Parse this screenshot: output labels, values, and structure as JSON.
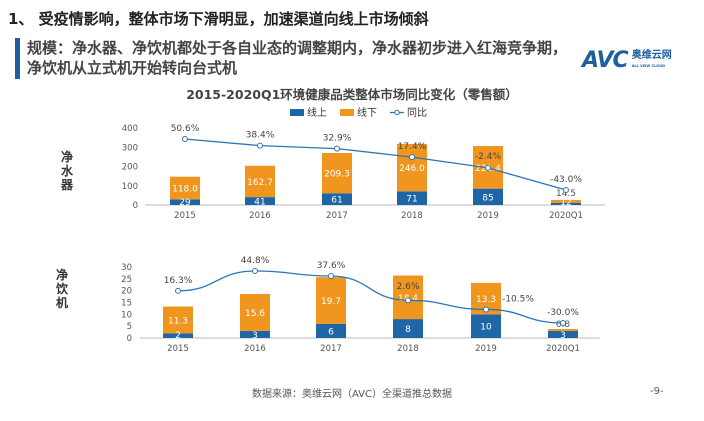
{
  "heading": "1、 受疫情影响，整体市场下滑明显，加速渠道向线上市场倾斜",
  "subheading": "规模：净水器、净饮机都处于各自业态的调整期内，净水器初步进入红海竞争期，净饮机从立式机开始转向台式机",
  "logo": {
    "mark": "AVC",
    "name": "奥维云网",
    "tagline": "ALL VIEW CLOUD"
  },
  "footer": "数据来源：奥维云网（AVC）全渠道推总数据",
  "page_number": "-9-",
  "colors": {
    "online": "#1f66a6",
    "offline": "#f0961e",
    "yoy": "#2e75b6"
  },
  "chart_data": [
    {
      "type": "bar",
      "stacked": true,
      "title": "2015-2020Q1环境健康品类整体市场同比变化（零售额）",
      "row_label": "净水器",
      "legend": [
        "线上",
        "线下",
        "同比"
      ],
      "legend_position": "top",
      "categories": [
        "2015",
        "2016",
        "2017",
        "2018",
        "2019",
        "2020Q1"
      ],
      "yticks": [
        "0",
        "100",
        "200",
        "300",
        "400"
      ],
      "ylim": [
        0,
        400
      ],
      "series": [
        {
          "name": "线上",
          "values": [
            29,
            41,
            61,
            71,
            85,
            12
          ]
        },
        {
          "name": "线下",
          "values": [
            118.0,
            162.7,
            209.3,
            246.0,
            221.4,
            14.5
          ]
        }
      ],
      "labels_online": [
        "29",
        "41",
        "61",
        "71",
        "85",
        "12"
      ],
      "labels_offline": [
        "118.0",
        "162.7",
        "209.3",
        "246.0",
        "221.4",
        "14.5"
      ],
      "yoy": {
        "name": "同比",
        "values": [
          50.6,
          38.4,
          32.9,
          17.4,
          -2.4,
          -43.0
        ],
        "labels": [
          "50.6%",
          "38.4%",
          "32.9%",
          "17.4%",
          "-2.4%",
          "-43.0%"
        ]
      }
    },
    {
      "type": "bar",
      "stacked": true,
      "row_label": "净饮机",
      "categories": [
        "2015",
        "2016",
        "2017",
        "2018",
        "2019",
        "2020Q1"
      ],
      "yticks": [
        "0",
        "5",
        "10",
        "15",
        "20",
        "25",
        "30"
      ],
      "ylim": [
        0,
        30
      ],
      "series": [
        {
          "name": "线上",
          "values": [
            2,
            3,
            6,
            8,
            10,
            3
          ]
        },
        {
          "name": "线下",
          "values": [
            11.3,
            15.6,
            19.7,
            18.4,
            13.3,
            0.8
          ]
        }
      ],
      "labels_online": [
        "2",
        "3",
        "6",
        "8",
        "10",
        "3"
      ],
      "labels_offline": [
        "11.3",
        "15.6",
        "19.7",
        "18.4",
        "13.3",
        "0.8"
      ],
      "yoy": {
        "name": "同比",
        "values": [
          16.3,
          44.8,
          37.6,
          2.6,
          -10.5,
          -30.0
        ],
        "labels": [
          "16.3%",
          "44.8%",
          "37.6%",
          "2.6%",
          "-10.5%",
          "-30.0%"
        ]
      }
    }
  ]
}
